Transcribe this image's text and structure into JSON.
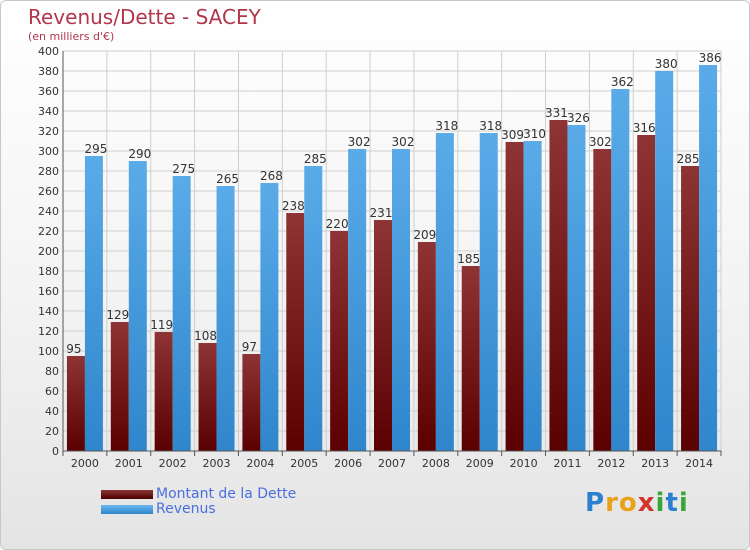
{
  "header": {
    "title": "Revenus/Dette - SACEY",
    "subtitle": "(en milliers d'€)"
  },
  "legend": {
    "items": [
      {
        "label": "Montant de la Dette",
        "color": "#7a1a1a"
      },
      {
        "label": "Revenus",
        "color": "#4aa0e0"
      }
    ]
  },
  "logo": {
    "text": "Proxiti",
    "letters": [
      "P",
      "r",
      "o",
      "x",
      "i",
      "t",
      "i"
    ],
    "colors": [
      "#2b7fd0",
      "#e8a21a",
      "#e8a21a",
      "#d0342c",
      "#3aa63a",
      "#2b7fd0",
      "#3aa63a"
    ]
  },
  "chart_data": {
    "type": "bar",
    "title": "Revenus/Dette - SACEY",
    "subtitle": "(en milliers d'€)",
    "xlabel": "",
    "ylabel": "",
    "categories": [
      "2000",
      "2001",
      "2002",
      "2003",
      "2004",
      "2005",
      "2006",
      "2007",
      "2008",
      "2009",
      "2010",
      "2011",
      "2012",
      "2013",
      "2014"
    ],
    "series": [
      {
        "name": "Montant de la Dette",
        "color": "#7a1a1a",
        "values": [
          95,
          129,
          119,
          108,
          97,
          238,
          220,
          231,
          209,
          185,
          309,
          331,
          302,
          316,
          285
        ]
      },
      {
        "name": "Revenus",
        "color": "#4aa0e0",
        "values": [
          295,
          290,
          275,
          265,
          268,
          285,
          302,
          302,
          318,
          318,
          310,
          326,
          362,
          380,
          386
        ]
      }
    ],
    "ylim": [
      0,
      400
    ],
    "ytick_step": 20,
    "grid": true,
    "legend_position": "bottom-left",
    "data_labels": true
  }
}
